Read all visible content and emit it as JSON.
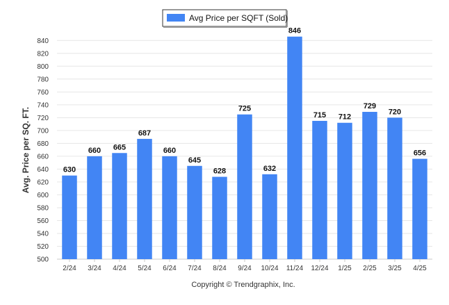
{
  "chart_data": {
    "type": "bar",
    "categories": [
      "2/24",
      "3/24",
      "4/24",
      "5/24",
      "6/24",
      "7/24",
      "8/24",
      "9/24",
      "10/24",
      "11/24",
      "12/24",
      "1/25",
      "2/25",
      "3/25",
      "4/25"
    ],
    "series": [
      {
        "name": "Avg Price per SQFT (Sold)",
        "values": [
          630,
          660,
          665,
          687,
          660,
          645,
          628,
          725,
          632,
          846,
          715,
          712,
          729,
          720,
          656
        ],
        "color": "#4285f4"
      }
    ],
    "ylabel": "Avg. Price per SQ. FT.",
    "xlabel": "",
    "ylim": [
      500,
      850
    ],
    "yticks": [
      500,
      520,
      540,
      560,
      580,
      600,
      620,
      640,
      660,
      680,
      700,
      720,
      740,
      760,
      780,
      800,
      820,
      840
    ],
    "grid": true,
    "legend_position": "top-center",
    "data_labels": true,
    "footer": "Copyright © Trendgraphix, Inc."
  }
}
